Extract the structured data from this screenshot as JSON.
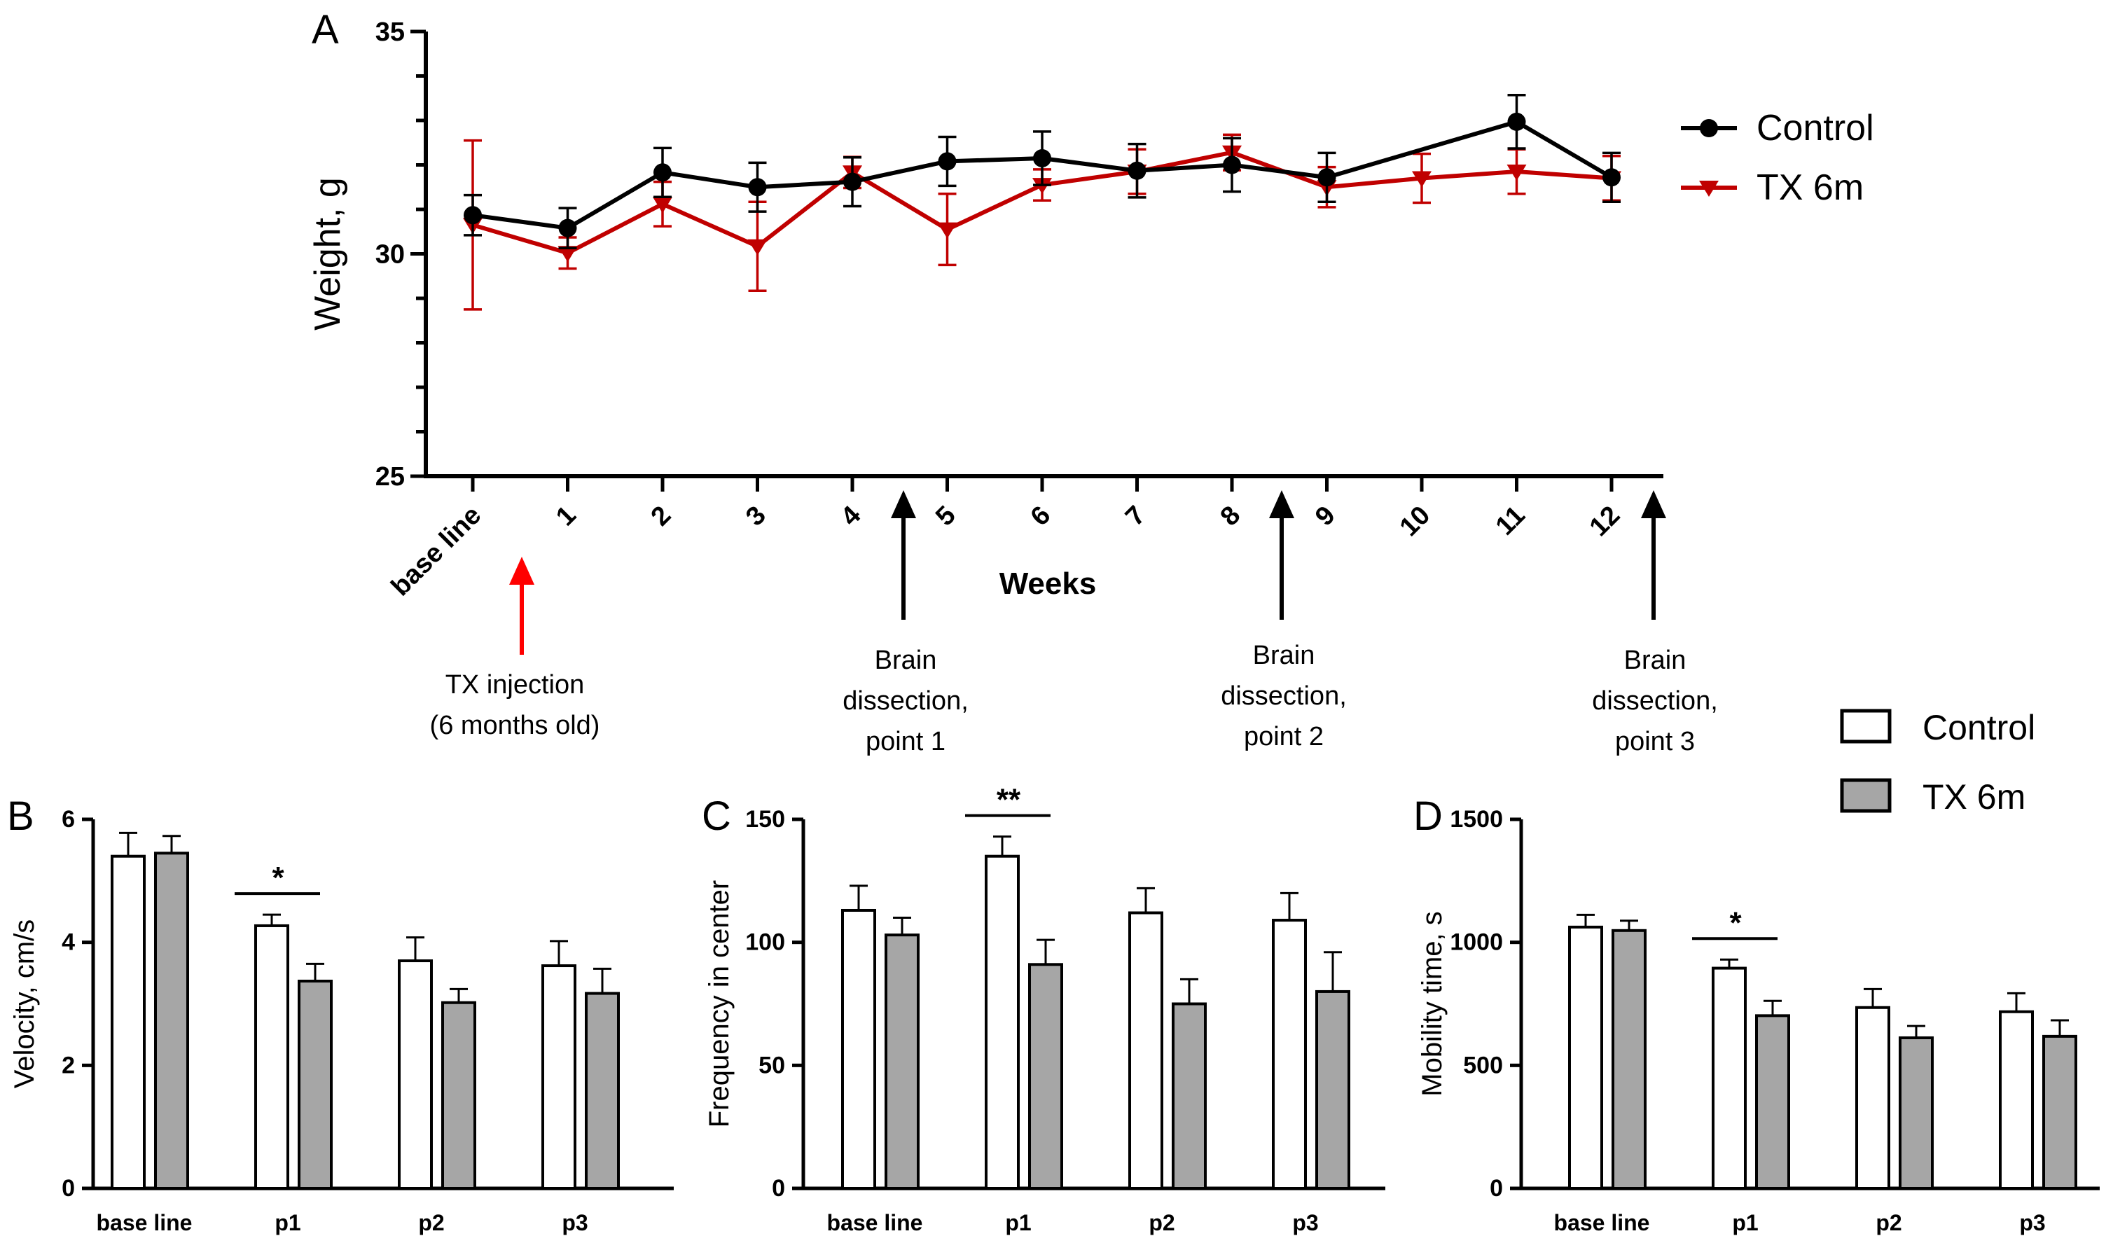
{
  "colors": {
    "control_line": "#000000",
    "tx_line": "#c00000",
    "injection_arrow": "#ff0000",
    "control_bar": "#ffffff",
    "tx_bar": "#a6a6a6"
  },
  "chart_data": [
    {
      "panel": "A",
      "type": "line",
      "title": "",
      "xlabel": "Weeks",
      "ylabel": "Weight, g",
      "ylim": [
        25,
        35
      ],
      "yticks": [
        "25",
        "30",
        "35"
      ],
      "categories": [
        "base line",
        "1",
        "2",
        "3",
        "4",
        "5",
        "6",
        "7",
        "8",
        "9",
        "10",
        "11",
        "12"
      ],
      "legend": [
        "Control",
        "TX 6m"
      ],
      "series": [
        {
          "name": "Control",
          "values": [
            30.87,
            30.58,
            31.83,
            31.5,
            31.62,
            32.08,
            32.15,
            31.87,
            32.0,
            31.72,
            null,
            32.97,
            31.72
          ],
          "errors": [
            0.45,
            0.45,
            0.55,
            0.55,
            0.55,
            0.55,
            0.6,
            0.6,
            0.6,
            0.55,
            null,
            0.6,
            0.55
          ]
        },
        {
          "name": "TX 6m",
          "values": [
            30.65,
            30.02,
            31.12,
            30.17,
            31.83,
            30.55,
            31.55,
            31.85,
            32.28,
            31.5,
            31.7,
            31.85,
            31.7
          ],
          "errors": [
            1.9,
            0.35,
            0.5,
            1.0,
            0.35,
            0.8,
            0.35,
            0.5,
            0.4,
            0.45,
            0.55,
            0.5,
            0.5
          ]
        }
      ],
      "annotations": [
        {
          "label": "TX injection\n(6 months old)",
          "after": "base line"
        },
        {
          "label": "Brain\ndissection,\npoint 1",
          "after": "4"
        },
        {
          "label": "Brain\ndissection,\npoint 2",
          "after": "8"
        },
        {
          "label": "Brain\ndissection,\npoint 3",
          "after": "12"
        }
      ]
    },
    {
      "panel": "B",
      "type": "bar",
      "xlabel": "",
      "ylabel": "Velocity, cm/s",
      "ylim": [
        0,
        6
      ],
      "yticks": [
        "0",
        "2",
        "4",
        "6"
      ],
      "categories": [
        "base line",
        "p1",
        "p2",
        "p3"
      ],
      "series": [
        {
          "name": "Control",
          "values": [
            5.4,
            4.27,
            3.7,
            3.62
          ],
          "errors": [
            0.38,
            0.18,
            0.38,
            0.4
          ]
        },
        {
          "name": "TX 6m",
          "values": [
            5.45,
            3.37,
            3.02,
            3.17
          ],
          "errors": [
            0.28,
            0.28,
            0.22,
            0.4
          ]
        }
      ],
      "significance": [
        {
          "category": "p1",
          "label": "*"
        }
      ]
    },
    {
      "panel": "C",
      "type": "bar",
      "xlabel": "",
      "ylabel": "Frequency in center",
      "ylim": [
        0,
        150
      ],
      "yticks": [
        "0",
        "50",
        "100",
        "150"
      ],
      "categories": [
        "base line",
        "p1",
        "p2",
        "p3"
      ],
      "series": [
        {
          "name": "Control",
          "values": [
            113,
            135,
            112,
            109
          ],
          "errors": [
            10,
            8,
            10,
            11
          ]
        },
        {
          "name": "TX 6m",
          "values": [
            103,
            91,
            75,
            80
          ],
          "errors": [
            7,
            10,
            10,
            16
          ]
        }
      ],
      "significance": [
        {
          "category": "p1",
          "label": "**"
        }
      ]
    },
    {
      "panel": "D",
      "type": "bar",
      "xlabel": "",
      "ylabel": "Mobility time, s",
      "ylim": [
        0,
        1500
      ],
      "yticks": [
        "0",
        "500",
        "1000",
        "1500"
      ],
      "categories": [
        "base line",
        "p1",
        "p2",
        "p3"
      ],
      "series": [
        {
          "name": "Control",
          "values": [
            1062,
            895,
            735,
            718
          ],
          "errors": [
            50,
            35,
            75,
            75
          ]
        },
        {
          "name": "TX 6m",
          "values": [
            1048,
            702,
            612,
            618
          ],
          "errors": [
            40,
            60,
            48,
            65
          ]
        }
      ],
      "significance": [
        {
          "category": "p1",
          "label": "*"
        }
      ]
    }
  ],
  "bar_legend": [
    "Control",
    "TX 6m"
  ]
}
